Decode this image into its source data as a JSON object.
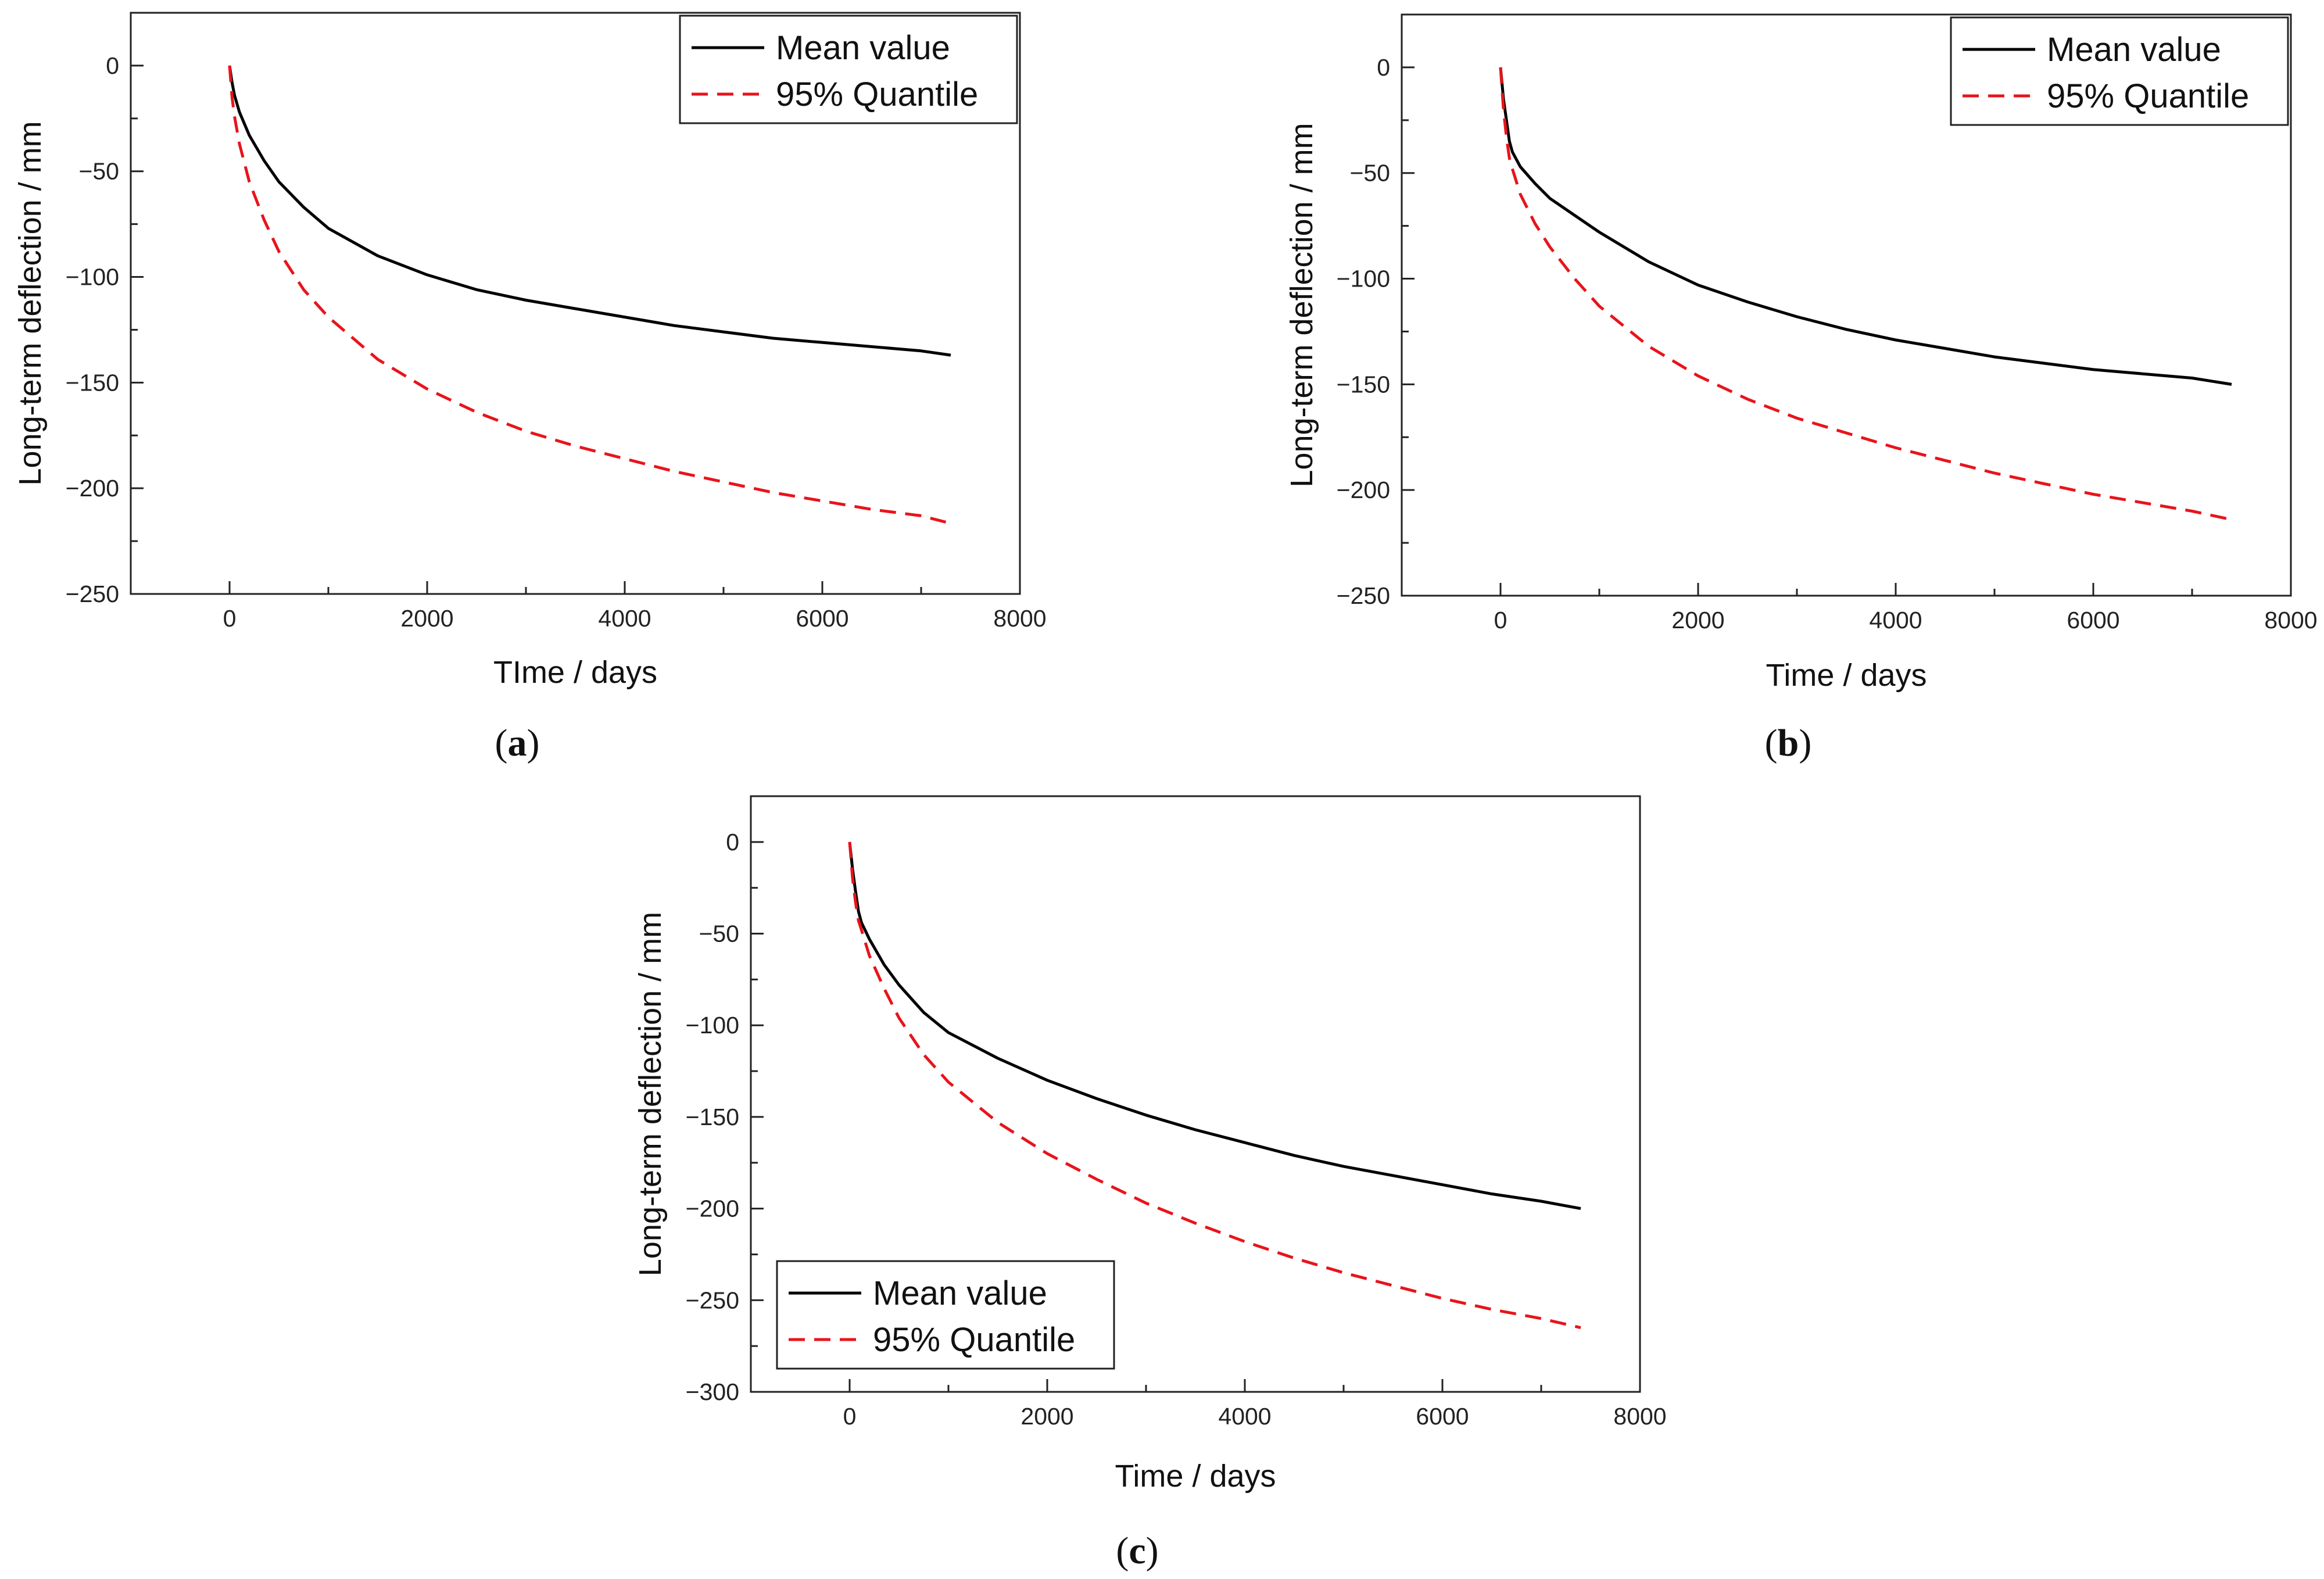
{
  "chart_data": [
    {
      "panel": "a",
      "type": "line",
      "caption": {
        "open": "(",
        "letter": "a",
        "close": ")"
      },
      "xlabel": "TIme / days",
      "ylabel": "Long-term deflection / mm",
      "xlim": [
        -1000,
        8000
      ],
      "ylim": [
        -250,
        25
      ],
      "xticks": [
        0,
        2000,
        4000,
        6000,
        8000
      ],
      "yticks": [
        0,
        -50,
        -100,
        -150,
        -200,
        -250
      ],
      "xtick_labels": [
        "0",
        "2000",
        "4000",
        "6000",
        "8000"
      ],
      "ytick_labels": [
        "0",
        "−50",
        "−100",
        "−150",
        "−200",
        "−250"
      ],
      "legend": {
        "position": "top-right",
        "entries": [
          "Mean value",
          "95% Quantile"
        ]
      },
      "series": [
        {
          "name": "Mean value",
          "style": "solid",
          "color": "#000000",
          "x": [
            0,
            25,
            50,
            100,
            200,
            350,
            500,
            750,
            1000,
            1500,
            2000,
            2500,
            3000,
            3500,
            4000,
            4500,
            5000,
            5500,
            6000,
            6500,
            7000,
            7300
          ],
          "y": [
            0,
            -8,
            -14,
            -22,
            -33,
            -45,
            -55,
            -67,
            -77,
            -90,
            -99,
            -106,
            -111,
            -115,
            -119,
            -123,
            -126,
            -129,
            -131,
            -133,
            -135,
            -137
          ]
        },
        {
          "name": "95% Quantile",
          "style": "dashed",
          "color": "#e8141b",
          "x": [
            0,
            25,
            50,
            100,
            200,
            350,
            500,
            750,
            1000,
            1500,
            2000,
            2500,
            3000,
            3500,
            4000,
            4500,
            5000,
            5500,
            6000,
            6500,
            7000,
            7250
          ],
          "y": [
            0,
            -15,
            -24,
            -37,
            -55,
            -73,
            -88,
            -106,
            -119,
            -139,
            -153,
            -164,
            -173,
            -180,
            -186,
            -192,
            -197,
            -202,
            -206,
            -210,
            -213,
            -216
          ]
        }
      ]
    },
    {
      "panel": "b",
      "type": "line",
      "caption": {
        "open": "(",
        "letter": "b",
        "close": ")"
      },
      "xlabel": "Time / days",
      "ylabel": "Long-term deflection / mm",
      "xlim": [
        -1000,
        8000
      ],
      "ylim": [
        -250,
        25
      ],
      "xticks": [
        0,
        2000,
        4000,
        6000,
        8000
      ],
      "yticks": [
        0,
        -50,
        -100,
        -150,
        -200,
        -250
      ],
      "xtick_labels": [
        "0",
        "2000",
        "4000",
        "6000",
        "8000"
      ],
      "ytick_labels": [
        "0",
        "−50",
        "−100",
        "−150",
        "−200",
        "−250"
      ],
      "legend": {
        "position": "top-right",
        "entries": [
          "Mean value",
          "95% Quantile"
        ]
      },
      "series": [
        {
          "name": "Mean value",
          "style": "solid",
          "color": "#000000",
          "x": [
            0,
            30,
            60,
            90,
            120,
            200,
            350,
            500,
            750,
            1000,
            1500,
            2000,
            2500,
            3000,
            3500,
            4000,
            4500,
            5000,
            5500,
            6000,
            6500,
            7000,
            7400
          ],
          "y": [
            0,
            -15,
            -25,
            -35,
            -40,
            -47,
            -55,
            -62,
            -70,
            -78,
            -92,
            -103,
            -111,
            -118,
            -124,
            -129,
            -133,
            -137,
            -140,
            -143,
            -145,
            -147,
            -150
          ]
        },
        {
          "name": "95% Quantile",
          "style": "dashed",
          "color": "#e8141b",
          "x": [
            0,
            30,
            60,
            90,
            120,
            200,
            350,
            500,
            750,
            1000,
            1500,
            2000,
            2500,
            3000,
            3500,
            4000,
            4500,
            5000,
            5500,
            6000,
            6500,
            7000,
            7400
          ],
          "y": [
            0,
            -20,
            -33,
            -43,
            -48,
            -60,
            -74,
            -85,
            -100,
            -113,
            -132,
            -146,
            -157,
            -166,
            -173,
            -180,
            -186,
            -192,
            -197,
            -202,
            -206,
            -210,
            -214
          ]
        }
      ]
    },
    {
      "panel": "c",
      "type": "line",
      "caption": {
        "open": "(",
        "letter": "c",
        "close": ")"
      },
      "xlabel": "Time / days",
      "ylabel": "Long-term deflection / mm",
      "xlim": [
        -1000,
        8000
      ],
      "ylim": [
        -300,
        25
      ],
      "xticks": [
        0,
        2000,
        4000,
        6000,
        8000
      ],
      "yticks": [
        0,
        -50,
        -100,
        -150,
        -200,
        -250,
        -300
      ],
      "xtick_labels": [
        "0",
        "2000",
        "4000",
        "6000",
        "8000"
      ],
      "ytick_labels": [
        "0",
        "−50",
        "−100",
        "−150",
        "−200",
        "−250",
        "−300"
      ],
      "legend": {
        "position": "bottom-left",
        "entries": [
          "Mean value",
          "95% Quantile"
        ]
      },
      "series": [
        {
          "name": "Mean value",
          "style": "solid",
          "color": "#000000",
          "x": [
            0,
            30,
            60,
            90,
            120,
            200,
            350,
            500,
            750,
            1000,
            1500,
            2000,
            2500,
            3000,
            3500,
            4000,
            4500,
            5000,
            5500,
            6000,
            6500,
            7000,
            7400
          ],
          "y": [
            0,
            -15,
            -27,
            -38,
            -44,
            -53,
            -67,
            -78,
            -93,
            -104,
            -118,
            -130,
            -140,
            -149,
            -157,
            -164,
            -171,
            -177,
            -182,
            -187,
            -192,
            -196,
            -200
          ]
        },
        {
          "name": "95% Quantile",
          "style": "dashed",
          "color": "#e8141b",
          "x": [
            0,
            30,
            60,
            90,
            120,
            200,
            350,
            500,
            750,
            1000,
            1500,
            2000,
            2500,
            3000,
            3500,
            4000,
            4500,
            5000,
            5500,
            6000,
            6500,
            7000,
            7400
          ],
          "y": [
            0,
            -20,
            -33,
            -43,
            -48,
            -62,
            -80,
            -96,
            -116,
            -131,
            -153,
            -170,
            -184,
            -197,
            -208,
            -218,
            -227,
            -235,
            -242,
            -249,
            -255,
            -260,
            -265
          ]
        }
      ]
    }
  ]
}
